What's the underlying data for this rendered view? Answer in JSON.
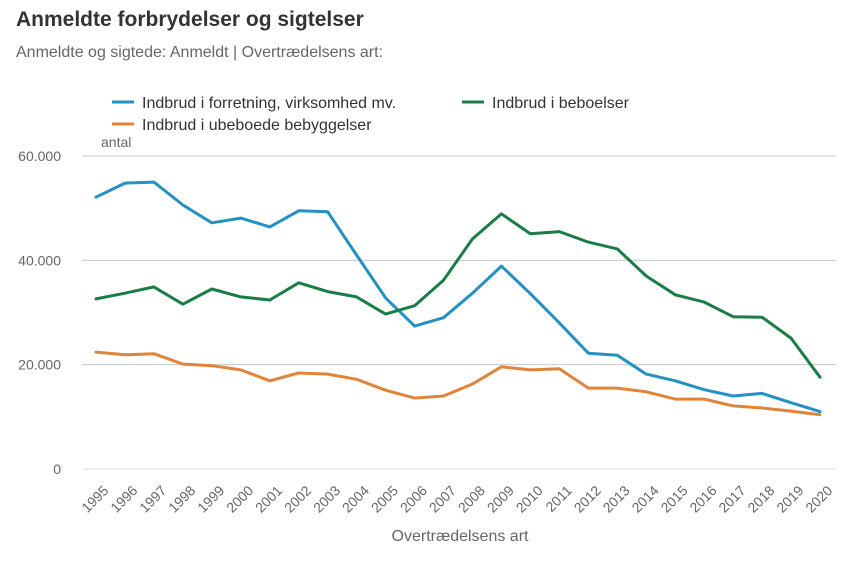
{
  "chart_data": {
    "type": "line",
    "title": "Anmeldte forbrydelser og sigtelser",
    "subtitle": "Anmeldte og sigtede: Anmeldt | Overtrædelsens art:",
    "xlabel": "Overtrædelsens art",
    "ylabel": "antal",
    "ylim": [
      0,
      60000
    ],
    "yticks": [
      0,
      20000,
      40000,
      60000
    ],
    "ytick_labels": [
      "0",
      "20.000",
      "40.000",
      "60.000"
    ],
    "grid": true,
    "legend_position": "top",
    "x": [
      "1995",
      "1996",
      "1997",
      "1998",
      "1999",
      "2000",
      "2001",
      "2002",
      "2003",
      "2004",
      "2005",
      "2006",
      "2007",
      "2008",
      "2009",
      "2010",
      "2011",
      "2012",
      "2013",
      "2014",
      "2015",
      "2016",
      "2017",
      "2018",
      "2019",
      "2020"
    ],
    "series": [
      {
        "name": "Indbrud i forretning, virksomhed mv.",
        "color": "#2391c3",
        "values": [
          52100,
          54800,
          55000,
          50600,
          47200,
          48100,
          46400,
          49500,
          49300,
          41000,
          32800,
          27400,
          29000,
          33700,
          38900,
          33600,
          28000,
          22200,
          21800,
          18200,
          16900,
          15200,
          14000,
          14500,
          12700,
          11000
        ]
      },
      {
        "name": "Indbrud i beboelser",
        "color": "#1a7d46",
        "values": [
          32600,
          33700,
          34900,
          31600,
          34500,
          33000,
          32400,
          35700,
          34000,
          33000,
          29700,
          31300,
          36200,
          44100,
          48900,
          45100,
          45500,
          43500,
          42200,
          37000,
          33400,
          32000,
          29200,
          29100,
          25100,
          17600
        ]
      },
      {
        "name": "Indbrud i ubeboede bebyggelser",
        "color": "#e0843a",
        "values": [
          22400,
          21900,
          22100,
          20100,
          19800,
          19000,
          16900,
          18400,
          18200,
          17200,
          15100,
          13600,
          14000,
          16300,
          19600,
          19000,
          19200,
          15500,
          15500,
          14800,
          13400,
          13400,
          12100,
          11700,
          11100,
          10400
        ]
      }
    ]
  }
}
